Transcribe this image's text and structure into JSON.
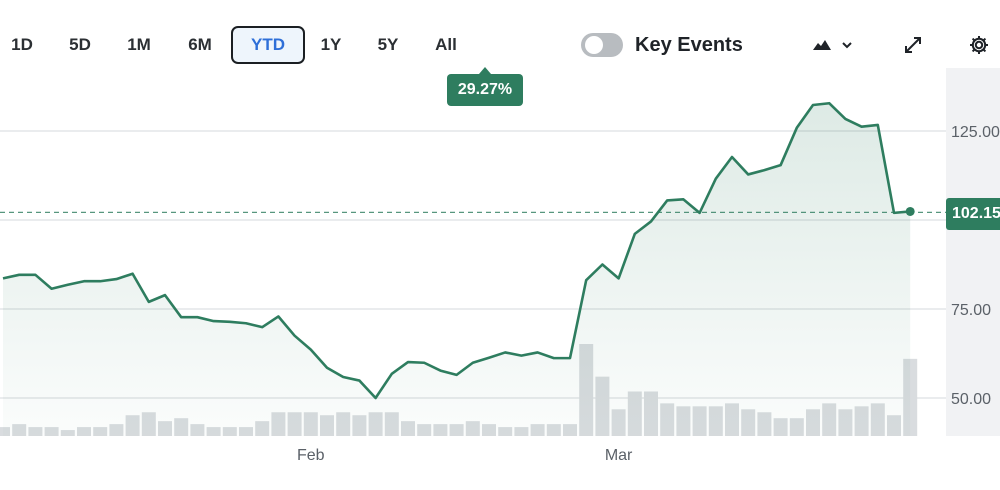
{
  "toolbar": {
    "ranges": [
      "1D",
      "5D",
      "1M",
      "6M",
      "YTD",
      "1Y",
      "5Y",
      "All"
    ],
    "active_range": "YTD",
    "key_events_label": "Key Events",
    "key_events_enabled": false,
    "chart_style_icon": "mountain-chart-icon",
    "expand_icon": "expand-arrows-icon",
    "settings_icon": "gear-icon"
  },
  "badge": {
    "change_pct": "29.27%"
  },
  "current_price_label": "102.15",
  "colors": {
    "line": "#2e7d5f",
    "accent_active": "#2e6fd8",
    "volume": "#d9dcdf",
    "grid": "#e3e5e8"
  },
  "chart_data": {
    "type": "line",
    "title": "",
    "xlabel": "",
    "ylabel": "",
    "x_ticks": [
      "Feb",
      "Mar"
    ],
    "y_ticks": [
      50,
      75,
      125
    ],
    "y_tick_labels": [
      "50.00",
      "75.00",
      "125.00"
    ],
    "ylim": [
      40,
      146
    ],
    "grid": true,
    "reference_line": 102.15,
    "series": [
      {
        "values": [
          83.6,
          84.6,
          84.6,
          80.7,
          81.8,
          82.8,
          82.8,
          83.4,
          84.9,
          77.0,
          78.9,
          72.7,
          72.7,
          71.6,
          71.4,
          71.0,
          69.9,
          72.9,
          67.5,
          63.6,
          58.5,
          55.9,
          54.9,
          50.0,
          56.8,
          60.1,
          59.9,
          57.7,
          56.5,
          59.9,
          61.3,
          62.8,
          61.9,
          62.8,
          61.2,
          61.2,
          83.1,
          87.5,
          83.6,
          96.1,
          99.6,
          105.5,
          105.8,
          102.0,
          111.6,
          117.7,
          112.8,
          114.0,
          115.4,
          125.9,
          132.3,
          132.8,
          128.4,
          126.2,
          126.7,
          102.0,
          102.4
        ]
      }
    ],
    "volume": [
      3,
      4,
      3,
      3,
      2,
      3,
      3,
      4,
      7,
      8,
      5,
      6,
      4,
      3,
      3,
      3,
      5,
      8,
      8,
      8,
      7,
      8,
      7,
      8,
      8,
      5,
      4,
      4,
      4,
      5,
      4,
      3,
      3,
      4,
      4,
      4,
      31,
      20,
      9,
      15,
      15,
      11,
      10,
      10,
      10,
      11,
      9,
      8,
      6,
      6,
      9,
      11,
      9,
      10,
      11,
      7,
      26
    ],
    "x_tick_index": {
      "Feb": 19,
      "Mar": 38
    }
  }
}
